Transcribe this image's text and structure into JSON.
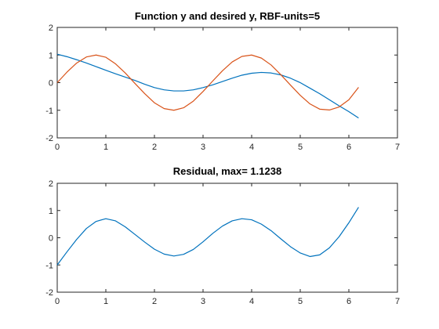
{
  "chart_data": [
    {
      "type": "line",
      "title": "Function y and desired y, RBF-units=5",
      "xlabel": "",
      "ylabel": "",
      "xlim": [
        0,
        7
      ],
      "ylim": [
        -2,
        2
      ],
      "xticks": [
        "0",
        "1",
        "2",
        "3",
        "4",
        "5",
        "6",
        "7"
      ],
      "yticks": [
        "2",
        "1",
        "0",
        "-1",
        "-2"
      ],
      "grid": false,
      "series": [
        {
          "color": "#0072BD",
          "x": [
            0,
            0.2,
            0.4,
            0.6,
            0.8,
            1.0,
            1.2,
            1.4,
            1.6,
            1.8,
            2.0,
            2.2,
            2.4,
            2.6,
            2.8,
            3.0,
            3.2,
            3.4,
            3.6,
            3.8,
            4.0,
            4.2,
            4.4,
            4.6,
            4.8,
            5.0,
            5.2,
            5.4,
            5.6,
            5.8,
            6.0,
            6.2
          ],
          "values": [
            1.03,
            0.94,
            0.83,
            0.71,
            0.58,
            0.45,
            0.32,
            0.2,
            0.08,
            -0.06,
            -0.18,
            -0.26,
            -0.3,
            -0.3,
            -0.26,
            -0.18,
            -0.08,
            0.04,
            0.16,
            0.27,
            0.34,
            0.37,
            0.35,
            0.28,
            0.16,
            0.0,
            -0.2,
            -0.4,
            -0.62,
            -0.84,
            -1.05,
            -1.28
          ]
        },
        {
          "color": "#D95319",
          "x": [
            0,
            0.2,
            0.4,
            0.6,
            0.8,
            1.0,
            1.2,
            1.4,
            1.6,
            1.8,
            2.0,
            2.2,
            2.4,
            2.6,
            2.8,
            3.0,
            3.2,
            3.4,
            3.6,
            3.8,
            4.0,
            4.2,
            4.4,
            4.6,
            4.8,
            5.0,
            5.2,
            5.4,
            5.6,
            5.8,
            6.0,
            6.2
          ],
          "values": [
            0.0,
            0.38,
            0.71,
            0.93,
            1.0,
            0.92,
            0.68,
            0.35,
            -0.03,
            -0.4,
            -0.73,
            -0.94,
            -1.0,
            -0.91,
            -0.67,
            -0.32,
            0.06,
            0.43,
            0.75,
            0.95,
            1.0,
            0.89,
            0.64,
            0.29,
            -0.09,
            -0.46,
            -0.77,
            -0.96,
            -0.99,
            -0.88,
            -0.62,
            -0.17
          ]
        }
      ]
    },
    {
      "type": "line",
      "title": "Residual, max= 1.1238",
      "xlabel": "",
      "ylabel": "",
      "xlim": [
        0,
        7
      ],
      "ylim": [
        -2,
        2
      ],
      "xticks": [
        "0",
        "1",
        "2",
        "3",
        "4",
        "5",
        "6",
        "7"
      ],
      "yticks": [
        "2",
        "1",
        "0",
        "-1",
        "-2"
      ],
      "grid": false,
      "series": [
        {
          "color": "#0072BD",
          "x": [
            0,
            0.2,
            0.4,
            0.6,
            0.8,
            1.0,
            1.2,
            1.4,
            1.6,
            1.8,
            2.0,
            2.2,
            2.4,
            2.6,
            2.8,
            3.0,
            3.2,
            3.4,
            3.6,
            3.8,
            4.0,
            4.2,
            4.4,
            4.6,
            4.8,
            5.0,
            5.2,
            5.4,
            5.6,
            5.8,
            6.0,
            6.2
          ],
          "values": [
            -1.0,
            -0.52,
            -0.06,
            0.34,
            0.6,
            0.7,
            0.62,
            0.4,
            0.12,
            -0.16,
            -0.42,
            -0.6,
            -0.67,
            -0.61,
            -0.43,
            -0.15,
            0.16,
            0.43,
            0.62,
            0.7,
            0.66,
            0.5,
            0.26,
            -0.04,
            -0.33,
            -0.56,
            -0.69,
            -0.63,
            -0.37,
            0.04,
            0.55,
            1.12
          ]
        }
      ]
    }
  ]
}
